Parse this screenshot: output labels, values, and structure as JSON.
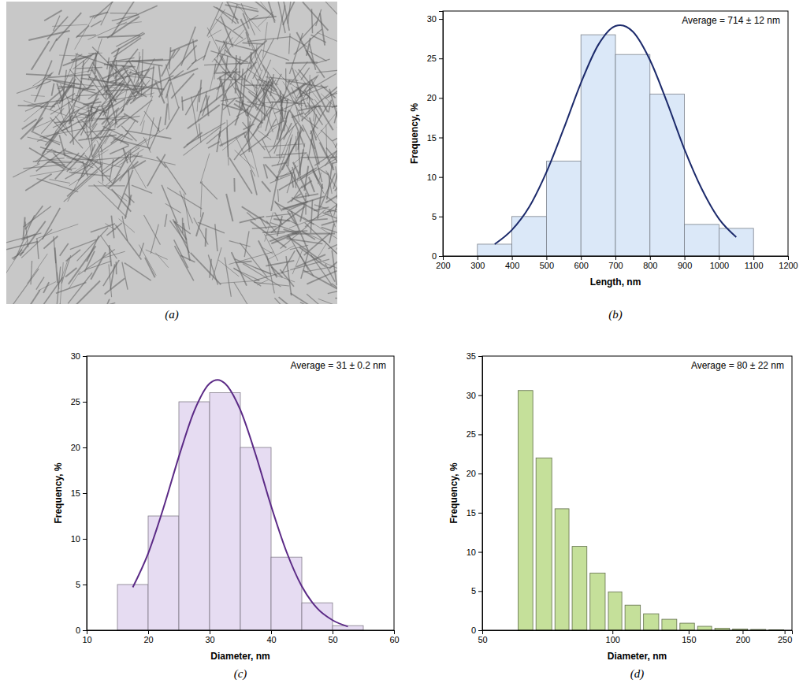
{
  "chart_data": [
    {
      "type": "image",
      "caption": "(a)"
    },
    {
      "type": "histogram",
      "caption": "(b)",
      "annotation": "Average = 714 ± 12 nm",
      "x_label": "Length, nm",
      "y_label": "Frequency, %",
      "bins": [
        300,
        400,
        500,
        600,
        700,
        800,
        900,
        1000,
        1100
      ],
      "values": [
        1.5,
        5,
        12,
        28,
        25.5,
        20.5,
        4,
        3.5
      ],
      "color": "#dbe8f8",
      "xlim": [
        200,
        1200
      ],
      "xticks": [
        200,
        300,
        400,
        500,
        600,
        700,
        800,
        900,
        1000,
        1100,
        1200
      ],
      "ylim": [
        0,
        31
      ],
      "yticks": [
        0,
        5,
        10,
        15,
        20,
        25,
        30
      ],
      "series": [
        {
          "type": "line",
          "color": "#1c2a6b",
          "x": [
            350,
            400,
            450,
            500,
            550,
            600,
            650,
            700,
            714,
            750,
            800,
            850,
            900,
            950,
            1000,
            1050
          ],
          "values": [
            1.5,
            3.3,
            6.2,
            10.6,
            16.1,
            21.9,
            26.7,
            29.1,
            29.2,
            28.4,
            24.8,
            19.4,
            13.5,
            8.5,
            4.7,
            2.4
          ]
        }
      ]
    },
    {
      "type": "histogram",
      "caption": "(c)",
      "annotation": "Average =  31 ± 0.2 nm",
      "x_label": "Diameter, nm",
      "y_label": "Frequency, %",
      "bins": [
        15,
        20,
        25,
        30,
        35,
        40,
        45,
        50,
        55
      ],
      "values": [
        5,
        12.5,
        25,
        26,
        20,
        8,
        3,
        0.5
      ],
      "color": "#e6dcf2",
      "xlim": [
        10,
        60
      ],
      "xticks": [
        10,
        20,
        30,
        40,
        50,
        60
      ],
      "ylim": [
        0,
        30
      ],
      "yticks": [
        0,
        5,
        10,
        15,
        20,
        25,
        30
      ],
      "series": [
        {
          "type": "line",
          "color": "#5b2a86",
          "x": [
            17.5,
            20,
            22.5,
            25,
            27.5,
            30,
            31.3,
            32.5,
            35,
            37.5,
            40,
            42.5,
            45,
            47.5,
            50,
            52.5
          ],
          "values": [
            4.7,
            8.4,
            13.4,
            19.0,
            24.0,
            27.0,
            27.4,
            27.0,
            24.1,
            19.2,
            13.6,
            8.6,
            4.8,
            2.4,
            1.1,
            0.4
          ]
        }
      ]
    },
    {
      "type": "histogram",
      "caption": "(d)",
      "annotation": "Average = 80 ± 22 nm",
      "x_label": "Diameter, nm",
      "y_label": "Frequency, %",
      "bins": [
        60,
        66,
        73,
        80,
        88,
        97,
        106,
        117,
        129,
        142,
        156,
        171,
        188,
        207,
        228,
        251
      ],
      "values": [
        30.6,
        22,
        15.5,
        10.7,
        7.3,
        4.9,
        3.2,
        2.1,
        1.4,
        0.9,
        0.5,
        0.25,
        0.15,
        0.1,
        0.05
      ],
      "color": "#c5e09a",
      "log": "x",
      "xlim": [
        50,
        260
      ],
      "xticks": [
        50,
        100,
        150,
        200,
        250
      ],
      "ylim": [
        0,
        35
      ],
      "yticks": [
        0,
        5,
        10,
        15,
        20,
        25,
        30,
        35
      ]
    }
  ]
}
